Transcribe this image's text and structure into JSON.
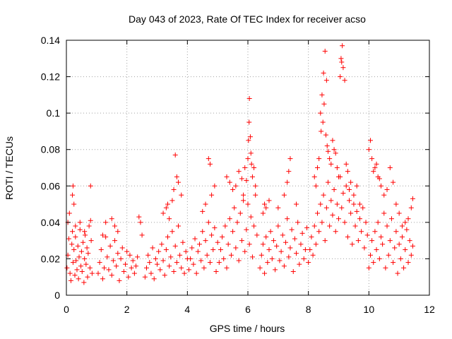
{
  "chart_data": {
    "type": "scatter",
    "title": "Day 043 of 2023, Rate Of TEC Index for receiver acso",
    "xlabel": "GPS time / hours",
    "ylabel": "ROTI / TECUs",
    "xlim": [
      0,
      12
    ],
    "ylim": [
      0,
      0.14
    ],
    "x_ticks": [
      "0",
      "2",
      "4",
      "6",
      "8",
      "10",
      "12"
    ],
    "y_ticks": [
      "0",
      "0.02",
      "0.04",
      "0.06",
      "0.08",
      "0.1",
      "0.12",
      "0.14"
    ],
    "grid": true,
    "marker": "plus",
    "color": "#ff0000",
    "series": [
      {
        "x": [
          0.02,
          0.05,
          0.08,
          0.12,
          0.15,
          0.18,
          0.2,
          0.22,
          0.25,
          0.28,
          0.3,
          0.32,
          0.35,
          0.38,
          0.4,
          0.42,
          0.45,
          0.48,
          0.5,
          0.52,
          0.55,
          0.58,
          0.6,
          0.62,
          0.65,
          0.68,
          0.7,
          0.72,
          0.75,
          0.78,
          0.8,
          0.82,
          0.85,
          0.2,
          0.22,
          0.25,
          0.8,
          0.1,
          0.05,
          0.3,
          0.45,
          0.6,
          1.05,
          1.1,
          1.15,
          1.2,
          1.25,
          1.3,
          1.35,
          1.4,
          1.45,
          1.5,
          1.55,
          1.6,
          1.65,
          1.7,
          1.75,
          1.8,
          1.85,
          1.9,
          1.95,
          2.0,
          2.05,
          2.1,
          2.15,
          2.2,
          2.25,
          2.3,
          2.35,
          1.3,
          1.5,
          1.6,
          1.7,
          1.2,
          2.4,
          2.45,
          2.5,
          2.6,
          2.65,
          2.7,
          2.75,
          2.8,
          2.85,
          2.9,
          2.95,
          3.0,
          3.05,
          3.1,
          3.15,
          3.2,
          3.25,
          3.3,
          3.35,
          3.4,
          3.45,
          3.5,
          3.55,
          3.6,
          3.65,
          3.7,
          3.75,
          3.8,
          3.85,
          3.9,
          3.95,
          4.0,
          3.2,
          3.3,
          3.35,
          3.5,
          3.55,
          3.7,
          3.8,
          3.65,
          3.4,
          3.6,
          4.05,
          4.1,
          4.15,
          4.2,
          4.25,
          4.3,
          4.35,
          4.4,
          4.45,
          4.5,
          4.55,
          4.6,
          4.65,
          4.7,
          4.75,
          4.8,
          4.85,
          4.9,
          4.95,
          5.0,
          4.7,
          4.75,
          4.5,
          4.6,
          4.8,
          4.9,
          5.05,
          5.1,
          5.15,
          5.2,
          5.25,
          5.3,
          5.35,
          5.4,
          5.45,
          5.5,
          5.55,
          5.6,
          5.65,
          5.7,
          5.75,
          5.8,
          5.85,
          5.9,
          5.95,
          6.0,
          6.05,
          6.1,
          6.15,
          6.2,
          6.25,
          6.3,
          5.3,
          5.4,
          5.5,
          5.6,
          5.7,
          5.8,
          5.9,
          6.0,
          6.02,
          6.04,
          6.05,
          6.08,
          6.1,
          6.12,
          6.15,
          6.2,
          6.25,
          5.95,
          5.85,
          6.4,
          6.45,
          6.5,
          6.55,
          6.6,
          6.65,
          6.7,
          6.75,
          6.8,
          6.85,
          6.9,
          6.95,
          7.0,
          7.05,
          7.1,
          7.15,
          7.2,
          7.25,
          7.3,
          7.35,
          7.4,
          7.45,
          7.5,
          7.55,
          7.6,
          7.65,
          7.7,
          7.75,
          7.8,
          7.85,
          7.9,
          7.95,
          6.5,
          6.6,
          6.55,
          6.7,
          7.0,
          7.3,
          7.35,
          7.4,
          7.6,
          7.2,
          8.0,
          8.05,
          8.1,
          8.15,
          8.2,
          8.25,
          8.3,
          8.35,
          8.4,
          8.45,
          8.5,
          8.55,
          8.6,
          8.65,
          8.7,
          8.75,
          8.8,
          8.85,
          8.9,
          8.95,
          9.0,
          9.05,
          9.1,
          9.15,
          9.2,
          9.25,
          9.3,
          9.35,
          9.4,
          9.45,
          9.5,
          9.55,
          9.6,
          9.65,
          9.7,
          9.75,
          9.8,
          9.85,
          9.9,
          9.95,
          8.4,
          8.45,
          8.5,
          8.55,
          8.6,
          8.42,
          8.48,
          8.52,
          8.58,
          8.62,
          8.65,
          8.7,
          8.75,
          8.8,
          8.85,
          8.9,
          8.95,
          9.0,
          9.05,
          9.1,
          9.12,
          9.08,
          9.15,
          9.2,
          8.3,
          8.35,
          8.25,
          8.2,
          9.25,
          9.3,
          9.35,
          9.4,
          9.5,
          9.6,
          9.7,
          10.0,
          10.05,
          10.1,
          10.15,
          10.2,
          10.25,
          10.3,
          10.35,
          10.4,
          10.45,
          10.5,
          10.55,
          10.6,
          10.65,
          10.7,
          10.75,
          10.8,
          10.85,
          10.9,
          10.95,
          11.0,
          11.05,
          11.1,
          11.15,
          11.2,
          11.25,
          11.3,
          11.35,
          11.4,
          11.45,
          10.0,
          10.05,
          10.1,
          10.2,
          10.3,
          10.4,
          10.5,
          10.6,
          10.7,
          10.8,
          10.9,
          11.0,
          11.1,
          11.2,
          11.3,
          11.4,
          11.45,
          10.15,
          10.25,
          10.35
        ],
        "y": [
          0.015,
          0.022,
          0.031,
          0.012,
          0.008,
          0.028,
          0.035,
          0.018,
          0.025,
          0.011,
          0.032,
          0.019,
          0.014,
          0.027,
          0.009,
          0.021,
          0.036,
          0.016,
          0.024,
          0.013,
          0.029,
          0.007,
          0.02,
          0.033,
          0.017,
          0.026,
          0.01,
          0.023,
          0.038,
          0.015,
          0.041,
          0.03,
          0.012,
          0.055,
          0.06,
          0.05,
          0.06,
          0.045,
          0.04,
          0.038,
          0.04,
          0.035,
          0.012,
          0.018,
          0.025,
          0.009,
          0.015,
          0.032,
          0.021,
          0.014,
          0.027,
          0.011,
          0.019,
          0.03,
          0.016,
          0.023,
          0.008,
          0.02,
          0.026,
          0.013,
          0.017,
          0.024,
          0.01,
          0.022,
          0.015,
          0.019,
          0.012,
          0.016,
          0.021,
          0.04,
          0.042,
          0.038,
          0.035,
          0.033,
          0.043,
          0.04,
          0.033,
          0.01,
          0.015,
          0.022,
          0.018,
          0.012,
          0.026,
          0.009,
          0.02,
          0.017,
          0.024,
          0.014,
          0.028,
          0.019,
          0.011,
          0.025,
          0.032,
          0.016,
          0.021,
          0.035,
          0.013,
          0.027,
          0.018,
          0.038,
          0.022,
          0.015,
          0.029,
          0.012,
          0.024,
          0.02,
          0.045,
          0.048,
          0.05,
          0.052,
          0.058,
          0.062,
          0.055,
          0.065,
          0.042,
          0.077,
          0.014,
          0.02,
          0.026,
          0.017,
          0.031,
          0.012,
          0.024,
          0.028,
          0.019,
          0.035,
          0.015,
          0.03,
          0.022,
          0.04,
          0.018,
          0.033,
          0.025,
          0.037,
          0.013,
          0.029,
          0.075,
          0.072,
          0.046,
          0.05,
          0.055,
          0.06,
          0.018,
          0.025,
          0.032,
          0.02,
          0.038,
          0.015,
          0.028,
          0.042,
          0.022,
          0.035,
          0.048,
          0.026,
          0.04,
          0.019,
          0.045,
          0.03,
          0.052,
          0.024,
          0.036,
          0.05,
          0.028,
          0.043,
          0.021,
          0.038,
          0.055,
          0.033,
          0.065,
          0.062,
          0.058,
          0.06,
          0.068,
          0.064,
          0.07,
          0.075,
          0.085,
          0.095,
          0.108,
          0.087,
          0.078,
          0.072,
          0.065,
          0.07,
          0.06,
          0.063,
          0.055,
          0.015,
          0.022,
          0.028,
          0.012,
          0.032,
          0.018,
          0.025,
          0.035,
          0.02,
          0.03,
          0.014,
          0.027,
          0.038,
          0.019,
          0.024,
          0.033,
          0.016,
          0.029,
          0.042,
          0.021,
          0.026,
          0.036,
          0.013,
          0.031,
          0.023,
          0.04,
          0.017,
          0.028,
          0.034,
          0.02,
          0.025,
          0.037,
          0.045,
          0.048,
          0.05,
          0.052,
          0.048,
          0.062,
          0.068,
          0.075,
          0.05,
          0.055,
          0.018,
          0.025,
          0.032,
          0.022,
          0.038,
          0.028,
          0.045,
          0.035,
          0.05,
          0.04,
          0.055,
          0.03,
          0.048,
          0.062,
          0.038,
          0.052,
          0.044,
          0.058,
          0.035,
          0.05,
          0.042,
          0.065,
          0.048,
          0.056,
          0.04,
          0.06,
          0.032,
          0.052,
          0.045,
          0.028,
          0.05,
          0.038,
          0.046,
          0.03,
          0.042,
          0.035,
          0.048,
          0.026,
          0.04,
          0.033,
          0.1,
          0.11,
          0.122,
          0.134,
          0.118,
          0.09,
          0.095,
          0.105,
          0.088,
          0.082,
          0.079,
          0.075,
          0.072,
          0.085,
          0.08,
          0.078,
          0.07,
          0.065,
          0.12,
          0.128,
          0.137,
          0.13,
          0.125,
          0.118,
          0.07,
          0.075,
          0.06,
          0.065,
          0.072,
          0.068,
          0.058,
          0.062,
          0.055,
          0.06,
          0.05,
          0.015,
          0.022,
          0.03,
          0.018,
          0.035,
          0.025,
          0.04,
          0.02,
          0.032,
          0.028,
          0.045,
          0.015,
          0.038,
          0.022,
          0.03,
          0.042,
          0.018,
          0.026,
          0.035,
          0.012,
          0.028,
          0.02,
          0.032,
          0.015,
          0.025,
          0.036,
          0.018,
          0.03,
          0.022,
          0.027,
          0.08,
          0.085,
          0.075,
          0.07,
          0.065,
          0.06,
          0.055,
          0.058,
          0.07,
          0.062,
          0.05,
          0.045,
          0.038,
          0.04,
          0.042,
          0.048,
          0.053,
          0.068,
          0.072,
          0.064
        ]
      }
    ]
  }
}
